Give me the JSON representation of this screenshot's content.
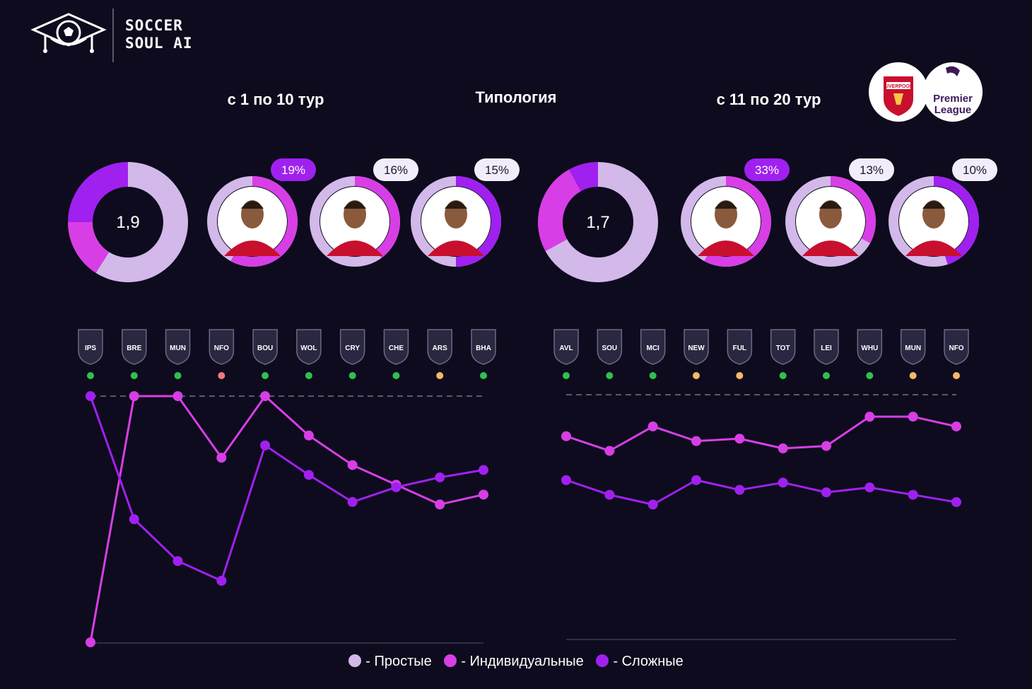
{
  "brand": {
    "line1": "SOCCER",
    "line2": "SOUL AI"
  },
  "headings": {
    "left": "с 1 по 10 тур",
    "center": "Типология",
    "right": "с 11 по 20 тур"
  },
  "league_badges": {
    "club_text": "LIVERPOOL",
    "league_text_1": "Premier",
    "league_text_2": "League"
  },
  "colors": {
    "simple": "#d3b8ea",
    "individual": "#d83ee6",
    "complex": "#a020f0",
    "background": "#0d0b1d"
  },
  "legend": [
    {
      "label": "- Простые",
      "color": "#d3b8ea"
    },
    {
      "label": "- Индивидуальные",
      "color": "#d83ee6"
    },
    {
      "label": "- Сложные",
      "color": "#a020f0"
    }
  ],
  "chart_data": [
    {
      "type": "pie",
      "variant": "donut",
      "period": "с 1 по 10 тур",
      "center_value": "1,9",
      "slices": [
        {
          "name": "Простые",
          "value": 59
        },
        {
          "name": "Индивидуальные",
          "value": 16
        },
        {
          "name": "Сложные",
          "value": 25
        }
      ]
    },
    {
      "type": "pie",
      "variant": "player-rings",
      "period": "с 1 по 10 тур",
      "players": [
        {
          "pct_label": "19%",
          "ring_fill": 0.58,
          "ring_color": "#d83ee6",
          "badge_highlight": true
        },
        {
          "pct_label": "16%",
          "ring_fill": 0.4,
          "ring_color": "#d83ee6",
          "badge_highlight": false
        },
        {
          "pct_label": "15%",
          "ring_fill": 0.5,
          "ring_color": "#a020f0",
          "badge_highlight": false
        }
      ]
    },
    {
      "type": "pie",
      "variant": "donut",
      "period": "с 11 по 20 тур",
      "center_value": "1,7",
      "slices": [
        {
          "name": "Простые",
          "value": 67
        },
        {
          "name": "Индивидуальные",
          "value": 25
        },
        {
          "name": "Сложные",
          "value": 8
        }
      ]
    },
    {
      "type": "pie",
      "variant": "player-rings",
      "period": "с 11 по 20 тур",
      "players": [
        {
          "pct_label": "33%",
          "ring_fill": 0.58,
          "ring_color": "#d83ee6",
          "badge_highlight": true
        },
        {
          "pct_label": "13%",
          "ring_fill": 0.33,
          "ring_color": "#d83ee6",
          "badge_highlight": false
        },
        {
          "pct_label": "10%",
          "ring_fill": 0.45,
          "ring_color": "#a020f0",
          "badge_highlight": false
        }
      ]
    },
    {
      "type": "line",
      "period": "с 1 по 10 тур",
      "categories": [
        "IPS",
        "BRE",
        "MUN",
        "NFO",
        "BOU",
        "WOL",
        "CRY",
        "CHE",
        "ARS",
        "BHA"
      ],
      "result_colors": [
        "#2fc14b",
        "#2fc14b",
        "#2fc14b",
        "#f07a7a",
        "#2fc14b",
        "#2fc14b",
        "#2fc14b",
        "#2fc14b",
        "#f5b86a",
        "#2fc14b"
      ],
      "ylim": [
        0,
        100
      ],
      "reference_line": 100,
      "series": [
        {
          "name": "Индивидуальные",
          "color": "#d83ee6",
          "values": [
            0,
            100,
            100,
            75,
            100,
            84,
            72,
            64,
            56,
            60
          ]
        },
        {
          "name": "Сложные",
          "color": "#a020f0",
          "values": [
            100,
            50,
            33,
            25,
            80,
            68,
            57,
            63,
            67,
            70
          ]
        }
      ]
    },
    {
      "type": "line",
      "period": "с 11 по 20 тур",
      "categories": [
        "AVL",
        "SOU",
        "MCI",
        "NEW",
        "FUL",
        "TOT",
        "LEI",
        "WHU",
        "MUN",
        "NFO"
      ],
      "result_colors": [
        "#2fc14b",
        "#2fc14b",
        "#2fc14b",
        "#f5b86a",
        "#f5b86a",
        "#2fc14b",
        "#2fc14b",
        "#2fc14b",
        "#f5b86a",
        "#f5b86a"
      ],
      "ylim": [
        0,
        100
      ],
      "reference_line": 100,
      "series": [
        {
          "name": "Индивидуальные",
          "color": "#d83ee6",
          "values": [
            83,
            77,
            87,
            81,
            82,
            78,
            79,
            91,
            91,
            87
          ]
        },
        {
          "name": "Сложные",
          "color": "#a020f0",
          "values": [
            65,
            59,
            55,
            65,
            61,
            64,
            60,
            62,
            59,
            56
          ]
        }
      ]
    }
  ]
}
